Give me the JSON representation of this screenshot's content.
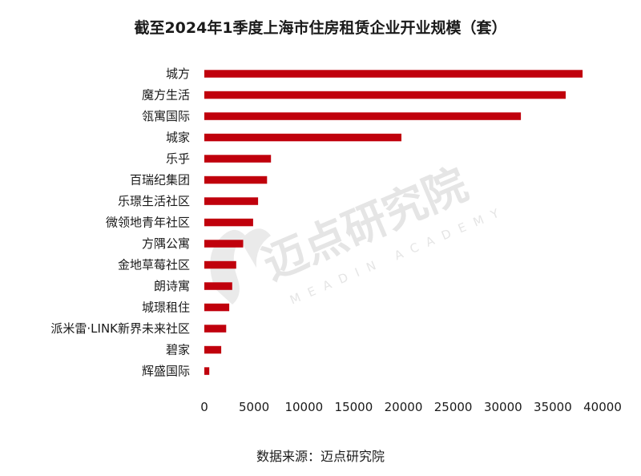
{
  "chart_data": {
    "type": "bar",
    "orientation": "horizontal",
    "title": "截至2024年1季度上海市住房租赁企业开业规模（套）",
    "xlabel": "",
    "ylabel": "",
    "categories": [
      "城方",
      "魔方生活",
      "瓴寓国际",
      "城家",
      "乐乎",
      "百瑞纪集团",
      "乐璟生活社区",
      "微领地青年社区",
      "方隅公寓",
      "金地草莓社区",
      "朗诗寓",
      "城璟租住",
      "派米雷·LINK新界未来社区",
      "碧家",
      "辉盛国际"
    ],
    "values": [
      38000,
      36300,
      31800,
      19800,
      6700,
      6300,
      5400,
      4900,
      3900,
      3200,
      2800,
      2500,
      2200,
      1700,
      500
    ],
    "xlim": [
      0,
      40000
    ],
    "xticks": [
      0,
      5000,
      10000,
      15000,
      20000,
      25000,
      30000,
      35000,
      40000
    ],
    "grid": false,
    "legend": "none",
    "bar_color": "#c0000c"
  },
  "watermark": {
    "name": "迈点研究院",
    "name_en": "MEADIN ACADEMY",
    "color": "#d9d9d9"
  },
  "source_note": "数据来源：迈点研究院"
}
